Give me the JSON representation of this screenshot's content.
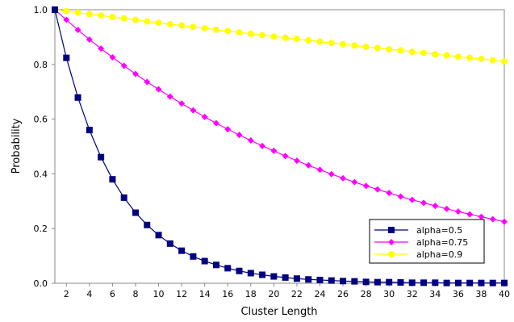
{
  "chart_data": {
    "type": "line",
    "xlabel": "Cluster Length",
    "ylabel": "Probability",
    "xlim": [
      1,
      40
    ],
    "ylim": [
      0,
      1
    ],
    "x_ticks": [
      2,
      4,
      6,
      8,
      10,
      12,
      14,
      16,
      18,
      20,
      22,
      24,
      26,
      28,
      30,
      32,
      34,
      36,
      38,
      40
    ],
    "y_ticks": [
      0.0,
      0.2,
      0.4,
      0.6,
      0.8,
      1.0
    ],
    "y_tick_labels": [
      "0.0",
      "0.2",
      "0.4",
      "0.6",
      "0.8",
      "1.0"
    ],
    "grid": false,
    "legend_position": "bottom-right",
    "x": [
      1,
      2,
      3,
      4,
      5,
      6,
      7,
      8,
      9,
      10,
      11,
      12,
      13,
      14,
      15,
      16,
      17,
      18,
      19,
      20,
      21,
      22,
      23,
      24,
      25,
      26,
      27,
      28,
      29,
      30,
      31,
      32,
      33,
      34,
      35,
      36,
      37,
      38,
      39,
      40
    ],
    "series": [
      {
        "name": "alpha=0.5",
        "color": "#000080",
        "marker": "square",
        "values": [
          1.0,
          0.824,
          0.679,
          0.56,
          0.461,
          0.38,
          0.313,
          0.258,
          0.213,
          0.176,
          0.145,
          0.119,
          0.098,
          0.081,
          0.067,
          0.055,
          0.045,
          0.037,
          0.031,
          0.025,
          0.021,
          0.017,
          0.014,
          0.012,
          0.01,
          0.008,
          0.007,
          0.005,
          0.004,
          0.004,
          0.003,
          0.002,
          0.002,
          0.002,
          0.001,
          0.001,
          0.001,
          0.001,
          0.001,
          0.001
        ]
      },
      {
        "name": "alpha=0.75",
        "color": "#ff00ff",
        "marker": "diamond",
        "values": [
          1.0,
          0.963,
          0.926,
          0.891,
          0.858,
          0.826,
          0.795,
          0.765,
          0.736,
          0.709,
          0.682,
          0.657,
          0.632,
          0.608,
          0.585,
          0.563,
          0.542,
          0.522,
          0.502,
          0.484,
          0.465,
          0.448,
          0.431,
          0.415,
          0.399,
          0.384,
          0.37,
          0.356,
          0.343,
          0.33,
          0.317,
          0.305,
          0.294,
          0.283,
          0.272,
          0.262,
          0.252,
          0.243,
          0.234,
          0.225
        ]
      },
      {
        "name": "alpha=0.9",
        "color": "#ffff00",
        "marker": "circle",
        "values": [
          1.0,
          0.995,
          0.989,
          0.984,
          0.979,
          0.973,
          0.968,
          0.963,
          0.957,
          0.952,
          0.947,
          0.942,
          0.937,
          0.932,
          0.927,
          0.922,
          0.917,
          0.912,
          0.907,
          0.902,
          0.897,
          0.893,
          0.888,
          0.883,
          0.878,
          0.874,
          0.869,
          0.864,
          0.86,
          0.855,
          0.851,
          0.846,
          0.842,
          0.837,
          0.833,
          0.828,
          0.824,
          0.82,
          0.815,
          0.811
        ]
      }
    ]
  }
}
